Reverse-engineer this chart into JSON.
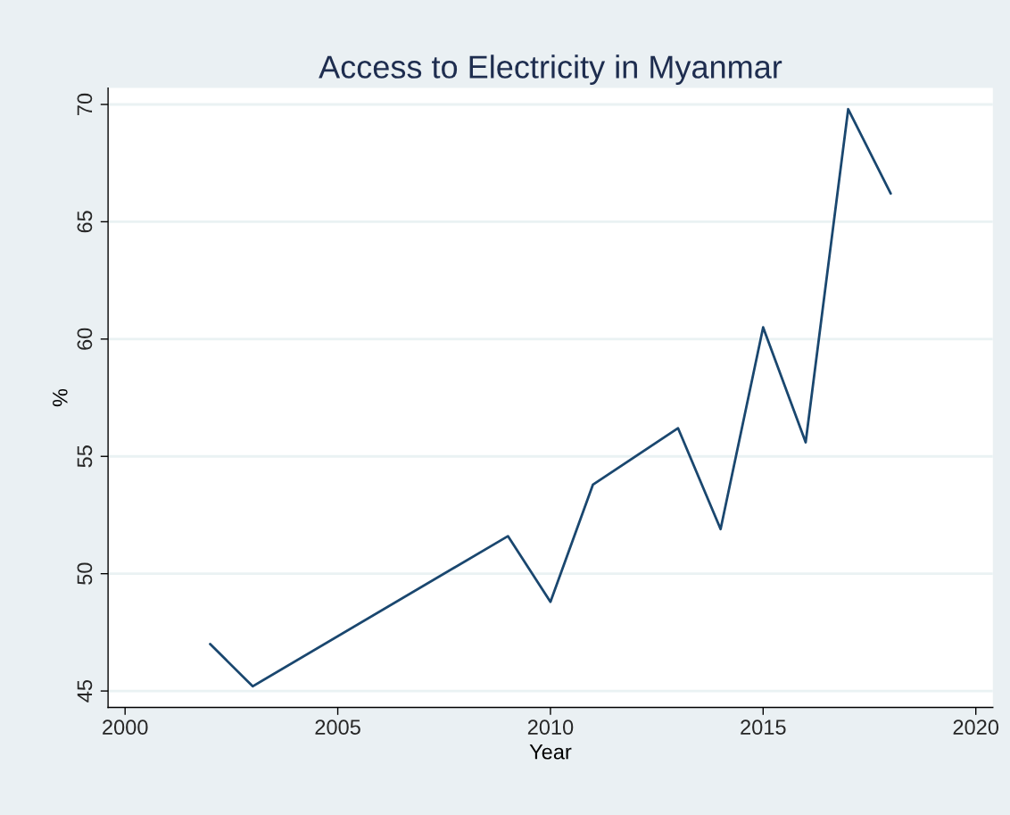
{
  "chart_data": {
    "type": "line",
    "title": "Access to Electricity in Myanmar",
    "xlabel": "Year",
    "ylabel": "%",
    "x": [
      2002,
      2003,
      2009,
      2010,
      2011,
      2013,
      2014,
      2015,
      2016,
      2017,
      2018
    ],
    "series": [
      {
        "color": "#1a476f",
        "values": [
          47.0,
          45.2,
          51.6,
          48.8,
          53.8,
          56.2,
          51.9,
          60.5,
          55.6,
          69.8,
          66.2
        ]
      }
    ],
    "xlim": [
      1999.6,
      2020.4
    ],
    "xticks": [
      2000,
      2005,
      2010,
      2015,
      2020
    ],
    "ylim": [
      44.3,
      70.7
    ],
    "yticks": [
      45,
      50,
      55,
      60,
      65,
      70
    ],
    "grid": "y",
    "legend": false
  }
}
